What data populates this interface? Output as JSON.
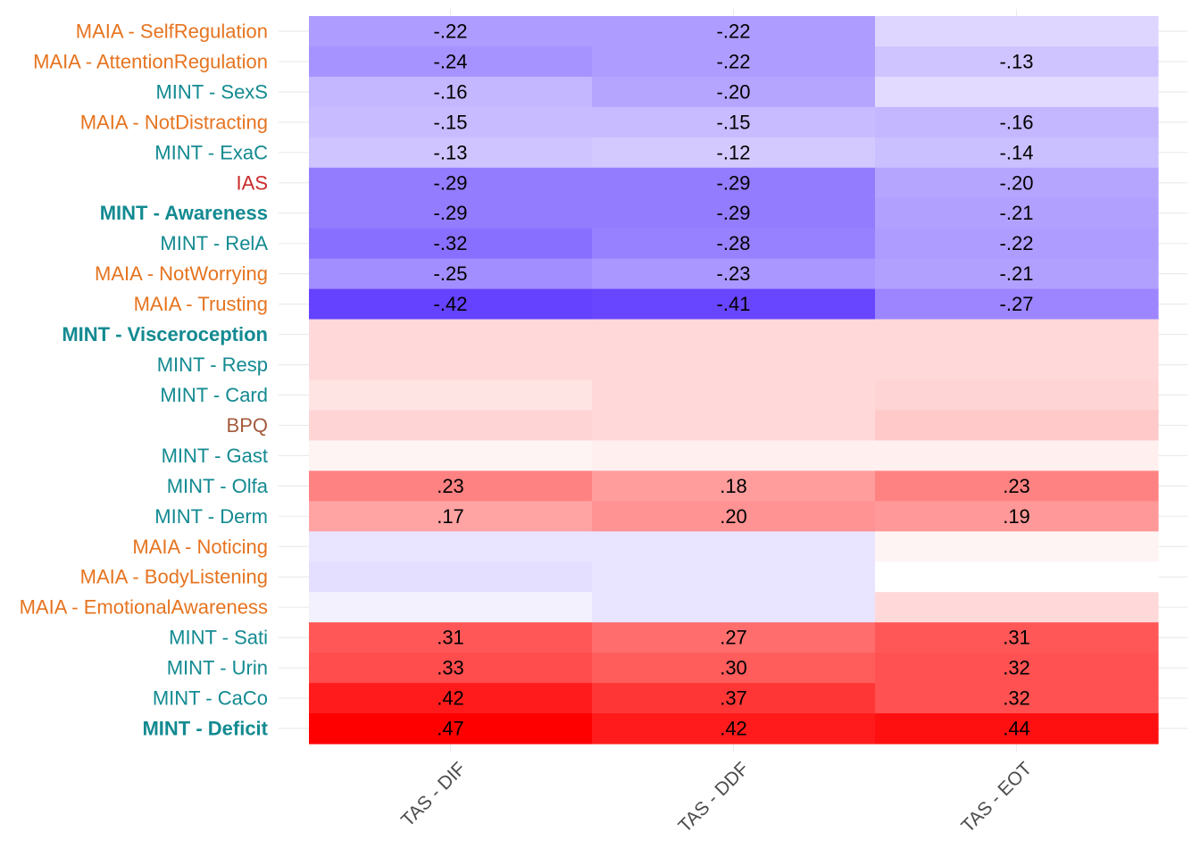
{
  "chart_data": {
    "type": "heatmap",
    "columns": [
      "TAS - DIF",
      "TAS - DDF",
      "TAS - EOT"
    ],
    "colors": {
      "MAIA": "#E67420",
      "MINT": "#138A91",
      "IAS": "#C92B2B",
      "BPQ": "#A45A3C",
      "negative_extreme": "#522BFF",
      "positive_extreme": "#FF0000",
      "neutral": "#FFFFFF",
      "grid": "#EBEBEB"
    },
    "color_scale": {
      "min": -0.47,
      "max": 0.47
    },
    "rows": [
      {
        "label": "MAIA - SelfRegulation",
        "group": "MAIA",
        "bold": false,
        "values": [
          -0.22,
          -0.22,
          -0.09
        ],
        "labels": [
          "-.22",
          "-.22",
          ""
        ]
      },
      {
        "label": "MAIA - AttentionRegulation",
        "group": "MAIA",
        "bold": false,
        "values": [
          -0.24,
          -0.22,
          -0.13
        ],
        "labels": [
          "-.24",
          "-.22",
          "-.13"
        ]
      },
      {
        "label": "MINT - SexS",
        "group": "MINT",
        "bold": false,
        "values": [
          -0.16,
          -0.2,
          -0.08
        ],
        "labels": [
          "-.16",
          "-.20",
          ""
        ]
      },
      {
        "label": "MAIA - NotDistracting",
        "group": "MAIA",
        "bold": false,
        "values": [
          -0.15,
          -0.15,
          -0.16
        ],
        "labels": [
          "-.15",
          "-.15",
          "-.16"
        ]
      },
      {
        "label": "MINT - ExaC",
        "group": "MINT",
        "bold": false,
        "values": [
          -0.13,
          -0.12,
          -0.14
        ],
        "labels": [
          "-.13",
          "-.12",
          "-.14"
        ]
      },
      {
        "label": "IAS",
        "group": "IAS",
        "bold": false,
        "values": [
          -0.29,
          -0.29,
          -0.2
        ],
        "labels": [
          "-.29",
          "-.29",
          "-.20"
        ]
      },
      {
        "label": "MINT - Awareness",
        "group": "MINT",
        "bold": true,
        "values": [
          -0.29,
          -0.29,
          -0.21
        ],
        "labels": [
          "-.29",
          "-.29",
          "-.21"
        ]
      },
      {
        "label": "MINT - RelA",
        "group": "MINT",
        "bold": false,
        "values": [
          -0.32,
          -0.28,
          -0.22
        ],
        "labels": [
          "-.32",
          "-.28",
          "-.22"
        ]
      },
      {
        "label": "MAIA - NotWorrying",
        "group": "MAIA",
        "bold": false,
        "values": [
          -0.25,
          -0.23,
          -0.21
        ],
        "labels": [
          "-.25",
          "-.23",
          "-.21"
        ]
      },
      {
        "label": "MAIA - Trusting",
        "group": "MAIA",
        "bold": false,
        "values": [
          -0.42,
          -0.41,
          -0.27
        ],
        "labels": [
          "-.42",
          "-.41",
          "-.27"
        ]
      },
      {
        "label": "MINT - Visceroception",
        "group": "MINT",
        "bold": true,
        "values": [
          0.07,
          0.07,
          0.07
        ],
        "labels": [
          "",
          "",
          ""
        ]
      },
      {
        "label": "MINT - Resp",
        "group": "MINT",
        "bold": false,
        "values": [
          0.07,
          0.07,
          0.07
        ],
        "labels": [
          "",
          "",
          ""
        ]
      },
      {
        "label": "MINT - Card",
        "group": "MINT",
        "bold": false,
        "values": [
          0.05,
          0.07,
          0.08
        ],
        "labels": [
          "",
          "",
          ""
        ]
      },
      {
        "label": "BPQ",
        "group": "BPQ",
        "bold": false,
        "values": [
          0.08,
          0.07,
          0.1
        ],
        "labels": [
          "",
          "",
          ""
        ]
      },
      {
        "label": "MINT - Gast",
        "group": "MINT",
        "bold": false,
        "values": [
          0.02,
          0.03,
          0.03
        ],
        "labels": [
          "",
          "",
          ""
        ]
      },
      {
        "label": "MINT - Olfa",
        "group": "MINT",
        "bold": false,
        "values": [
          0.23,
          0.18,
          0.23
        ],
        "labels": [
          ".23",
          ".18",
          ".23"
        ]
      },
      {
        "label": "MINT - Derm",
        "group": "MINT",
        "bold": false,
        "values": [
          0.17,
          0.2,
          0.19
        ],
        "labels": [
          ".17",
          ".20",
          ".19"
        ]
      },
      {
        "label": "MAIA - Noticing",
        "group": "MAIA",
        "bold": false,
        "values": [
          -0.06,
          -0.06,
          0.02
        ],
        "labels": [
          "",
          "",
          ""
        ]
      },
      {
        "label": "MAIA - BodyListening",
        "group": "MAIA",
        "bold": false,
        "values": [
          -0.07,
          -0.06,
          0.0
        ],
        "labels": [
          "",
          "",
          ""
        ]
      },
      {
        "label": "MAIA - EmotionalAwareness",
        "group": "MAIA",
        "bold": false,
        "values": [
          -0.03,
          -0.06,
          0.07
        ],
        "labels": [
          "",
          "",
          ""
        ]
      },
      {
        "label": "MINT - Sati",
        "group": "MINT",
        "bold": false,
        "values": [
          0.31,
          0.27,
          0.31
        ],
        "labels": [
          ".31",
          ".27",
          ".31"
        ]
      },
      {
        "label": "MINT - Urin",
        "group": "MINT",
        "bold": false,
        "values": [
          0.33,
          0.3,
          0.32
        ],
        "labels": [
          ".33",
          ".30",
          ".32"
        ]
      },
      {
        "label": "MINT - CaCo",
        "group": "MINT",
        "bold": false,
        "values": [
          0.42,
          0.37,
          0.32
        ],
        "labels": [
          ".42",
          ".37",
          ".32"
        ]
      },
      {
        "label": "MINT - Deficit",
        "group": "MINT",
        "bold": true,
        "values": [
          0.47,
          0.42,
          0.44
        ],
        "labels": [
          ".47",
          ".42",
          ".44"
        ]
      }
    ]
  }
}
